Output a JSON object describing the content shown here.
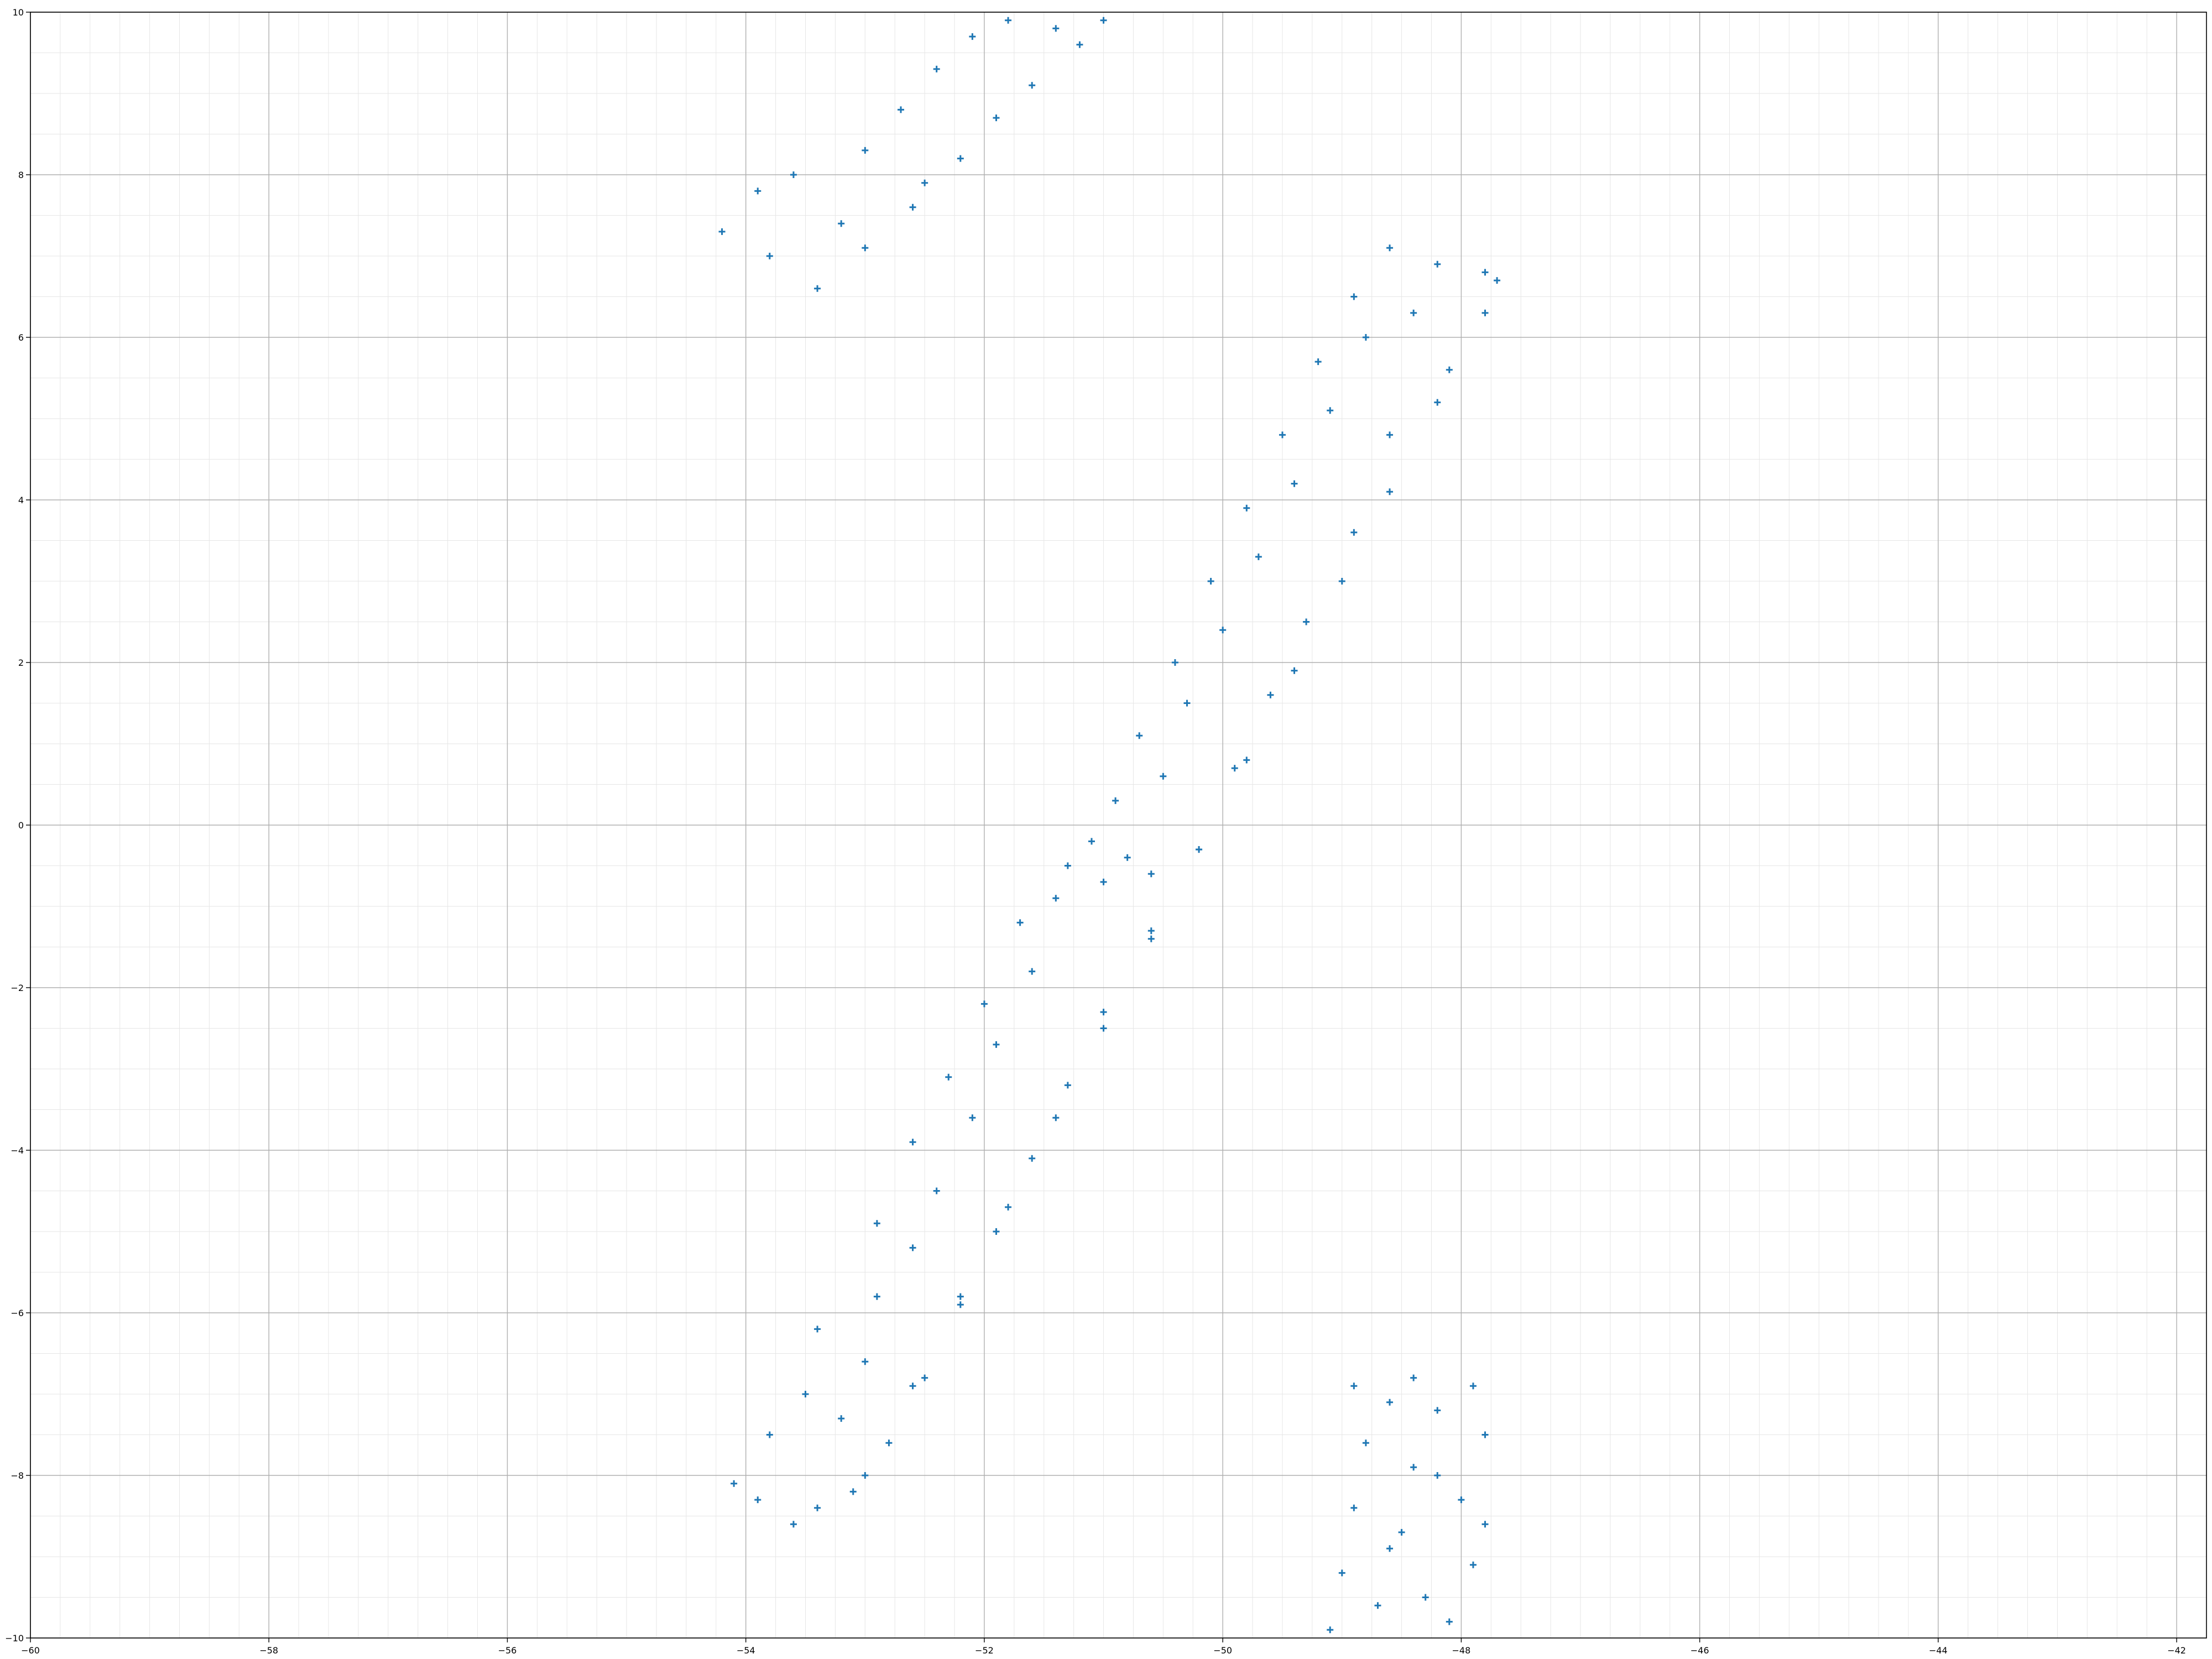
{
  "chart_data": {
    "type": "scatter",
    "title": "",
    "xlabel": "",
    "ylabel": "",
    "xlim": [
      -60,
      -41.75
    ],
    "ylim": [
      -10,
      10
    ],
    "grid": {
      "major": true,
      "minor": true
    },
    "legend": "none",
    "marker": "+",
    "color": "#1f77b4",
    "x_ticks": [
      -60,
      -58,
      -56,
      -54,
      -52,
      -50,
      -48,
      -46,
      -44,
      -42
    ],
    "y_ticks": [
      -10,
      -8,
      -6,
      -4,
      -2,
      0,
      2,
      4,
      6,
      8,
      10
    ],
    "x_tick_labels": [
      "−60",
      "−58",
      "−56",
      "−54",
      "−52",
      "−50",
      "−48",
      "−46",
      "−44",
      "−42"
    ],
    "y_tick_labels": [
      "−10",
      "−8",
      "−6",
      "−4",
      "−2",
      "0",
      "2",
      "4",
      "6",
      "8",
      "10"
    ],
    "series": [
      {
        "points": [
          [
            -54.1,
            -8.1
          ],
          [
            -53.9,
            -8.3
          ],
          [
            -53.6,
            -8.6
          ],
          [
            -53.4,
            -8.4
          ],
          [
            -53.1,
            -8.2
          ],
          [
            -53.8,
            -7.5
          ],
          [
            -53.5,
            -7.0
          ],
          [
            -53.2,
            -7.3
          ],
          [
            -53.0,
            -6.6
          ],
          [
            -53.4,
            -6.2
          ],
          [
            -52.9,
            -5.8
          ],
          [
            -52.6,
            -5.2
          ],
          [
            -52.9,
            -4.9
          ],
          [
            -52.4,
            -4.5
          ],
          [
            -52.6,
            -3.9
          ],
          [
            -52.1,
            -3.6
          ],
          [
            -52.3,
            -3.1
          ],
          [
            -51.9,
            -2.7
          ],
          [
            -52.0,
            -2.2
          ],
          [
            -51.6,
            -1.8
          ],
          [
            -51.7,
            -1.2
          ],
          [
            -51.4,
            -0.9
          ],
          [
            -51.3,
            -0.5
          ],
          [
            -51.0,
            -0.7
          ],
          [
            -50.8,
            -0.4
          ],
          [
            -50.6,
            -0.6
          ],
          [
            -51.1,
            -0.2
          ],
          [
            -50.9,
            0.3
          ],
          [
            -50.5,
            0.6
          ],
          [
            -50.7,
            1.1
          ],
          [
            -50.3,
            1.5
          ],
          [
            -50.4,
            2.0
          ],
          [
            -50.0,
            2.4
          ],
          [
            -50.1,
            3.0
          ],
          [
            -49.7,
            3.3
          ],
          [
            -49.8,
            3.9
          ],
          [
            -49.4,
            4.2
          ],
          [
            -49.5,
            4.8
          ],
          [
            -49.1,
            5.1
          ],
          [
            -49.2,
            5.7
          ],
          [
            -48.8,
            6.0
          ],
          [
            -48.9,
            6.5
          ],
          [
            -48.6,
            7.1
          ],
          [
            -48.2,
            6.9
          ],
          [
            -47.8,
            6.8
          ],
          [
            -48.4,
            6.3
          ],
          [
            -48.1,
            5.6
          ],
          [
            -48.6,
            4.8
          ],
          [
            -48.9,
            3.6
          ],
          [
            -49.3,
            2.5
          ],
          [
            -49.6,
            1.6
          ],
          [
            -49.9,
            0.7
          ],
          [
            -50.2,
            -0.3
          ],
          [
            -50.6,
            -1.3
          ],
          [
            -51.0,
            -2.3
          ],
          [
            -51.3,
            -3.2
          ],
          [
            -51.6,
            -4.1
          ],
          [
            -51.9,
            -5.0
          ],
          [
            -52.2,
            -5.9
          ],
          [
            -52.5,
            -6.8
          ],
          [
            -52.8,
            -7.6
          ],
          [
            -53.0,
            -8.0
          ],
          [
            -52.6,
            -6.9
          ],
          [
            -52.2,
            -5.8
          ],
          [
            -51.8,
            -4.7
          ],
          [
            -51.4,
            -3.6
          ],
          [
            -51.0,
            -2.5
          ],
          [
            -50.6,
            -1.4
          ],
          [
            -50.2,
            -0.3
          ],
          [
            -49.8,
            0.8
          ],
          [
            -49.4,
            1.9
          ],
          [
            -49.0,
            3.0
          ],
          [
            -48.6,
            4.1
          ],
          [
            -48.2,
            5.2
          ],
          [
            -47.8,
            6.3
          ],
          [
            -47.7,
            6.7
          ],
          [
            -54.2,
            7.3
          ],
          [
            -53.9,
            7.8
          ],
          [
            -53.6,
            8.0
          ],
          [
            -53.8,
            7.0
          ],
          [
            -53.4,
            6.6
          ],
          [
            -53.2,
            7.4
          ],
          [
            -53.0,
            8.3
          ],
          [
            -52.7,
            8.8
          ],
          [
            -52.4,
            9.3
          ],
          [
            -52.1,
            9.7
          ],
          [
            -51.8,
            9.9
          ],
          [
            -51.4,
            9.8
          ],
          [
            -51.0,
            9.9
          ],
          [
            -52.6,
            7.6
          ],
          [
            -52.2,
            8.2
          ],
          [
            -51.9,
            8.7
          ],
          [
            -51.6,
            9.1
          ],
          [
            -51.2,
            9.6
          ],
          [
            -53.0,
            7.1
          ],
          [
            -52.5,
            7.9
          ],
          [
            -49.1,
            -9.9
          ],
          [
            -49.0,
            -9.2
          ],
          [
            -48.9,
            -8.4
          ],
          [
            -48.8,
            -7.6
          ],
          [
            -48.9,
            -6.9
          ],
          [
            -48.6,
            -7.1
          ],
          [
            -48.4,
            -7.9
          ],
          [
            -48.5,
            -8.7
          ],
          [
            -48.3,
            -9.5
          ],
          [
            -48.1,
            -9.8
          ],
          [
            -47.9,
            -9.1
          ],
          [
            -48.0,
            -8.3
          ],
          [
            -47.8,
            -7.5
          ],
          [
            -47.9,
            -6.9
          ],
          [
            -48.2,
            -7.2
          ],
          [
            -48.6,
            -8.9
          ],
          [
            -48.7,
            -9.6
          ],
          [
            -48.2,
            -8.0
          ],
          [
            -47.8,
            -8.6
          ],
          [
            -48.4,
            -6.8
          ]
        ]
      }
    ]
  }
}
